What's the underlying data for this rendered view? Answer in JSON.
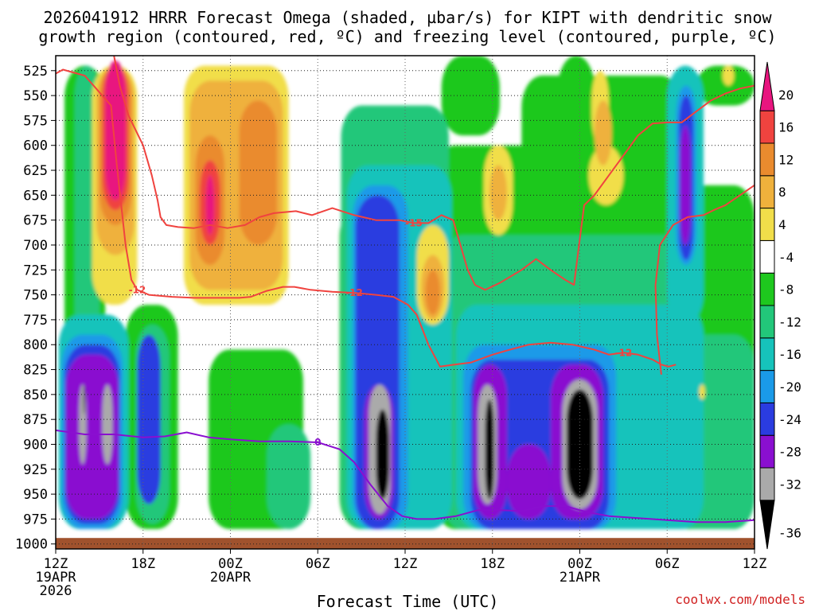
{
  "title": {
    "line1": "2026041912 HRRR Forecast Omega (shaded, µbar/s) for KIPT with dendritic snow",
    "line2": "growth region (contoured, red, ºC) and freezing level (contoured, purple, ºC)"
  },
  "credit": "coolwx.com/models",
  "colors": {
    "pink": "#e8157f",
    "red": "#f0433f",
    "orange": "#ea8b2e",
    "lightorange": "#efb13c",
    "yellow": "#f1de4a",
    "white": "#ffffff",
    "green": "#1ec81e",
    "seagreen": "#22c77a",
    "teal": "#16c3bb",
    "sky": "#1a9ae8",
    "blue": "#2a3ce0",
    "purple": "#8a0fd0",
    "gray": "#aaaaaa",
    "black": "#000000",
    "ground": "#a0522d",
    "dsg_contour": "#f0433f",
    "freezing_contour": "#8a0fd0"
  },
  "chart_data": {
    "type": "heatmap",
    "title": "2026041912 HRRR Forecast Omega (shaded, µbar/s) for KIPT with dendritic snow growth region (contoured, red, ºC) and freezing level (contoured, purple, ºC)",
    "xlabel": "Forecast Time (UTC)",
    "x_ticks": [
      {
        "hour": 0,
        "label": "12Z",
        "date": "19APR",
        "year": "2026"
      },
      {
        "hour": 6,
        "label": "18Z"
      },
      {
        "hour": 12,
        "label": "00Z",
        "date": "20APR"
      },
      {
        "hour": 18,
        "label": "06Z"
      },
      {
        "hour": 24,
        "label": "12Z"
      },
      {
        "hour": 30,
        "label": "18Z"
      },
      {
        "hour": 36,
        "label": "00Z",
        "date": "21APR"
      },
      {
        "hour": 42,
        "label": "06Z"
      },
      {
        "hour": 48,
        "label": "12Z"
      }
    ],
    "xlim": [
      0,
      48
    ],
    "ylabel": "",
    "y_ticks": [
      525,
      550,
      575,
      600,
      625,
      650,
      675,
      700,
      725,
      750,
      775,
      800,
      825,
      850,
      875,
      900,
      925,
      950,
      975,
      1000
    ],
    "ylim": [
      510,
      1005
    ],
    "colorbar": {
      "levels": [
        -36,
        -32,
        -28,
        -24,
        -20,
        -16,
        -12,
        -8,
        -4,
        4,
        8,
        12,
        16,
        20
      ],
      "labels": [
        "-36",
        "-32",
        "-28",
        "-24",
        "-20",
        "-16",
        "-12",
        "-8",
        "-4",
        "4",
        "8",
        "12",
        "16",
        "20"
      ],
      "colors": [
        "black",
        "gray",
        "purple",
        "blue",
        "sky",
        "teal",
        "seagreen",
        "green",
        "white",
        "yellow",
        "lightorange",
        "orange",
        "red",
        "pink"
      ],
      "units": "µbar/s"
    },
    "omega_features": [
      {
        "level": "green",
        "t": [
          0.6,
          3.4
        ],
        "p": [
          520,
          985
        ]
      },
      {
        "level": "green",
        "t": [
          4.8,
          8.4
        ],
        "p": [
          760,
          985
        ]
      },
      {
        "level": "green",
        "t": [
          10.5,
          17
        ],
        "p": [
          805,
          985
        ]
      },
      {
        "level": "green",
        "t": [
          19.5,
          27
        ],
        "p": [
          660,
          985
        ]
      },
      {
        "level": "green",
        "t": [
          26,
          34
        ],
        "p": [
          600,
          985
        ]
      },
      {
        "level": "green",
        "t": [
          32,
          43
        ],
        "p": [
          530,
          985
        ]
      },
      {
        "level": "green",
        "t": [
          42,
          48
        ],
        "p": [
          640,
          985
        ]
      },
      {
        "level": "green",
        "t": [
          44,
          48
        ],
        "p": [
          520,
          560
        ]
      },
      {
        "level": "green",
        "t": [
          26.5,
          30.5
        ],
        "p": [
          510,
          590
        ]
      },
      {
        "level": "green",
        "t": [
          34.5,
          37
        ],
        "p": [
          510,
          580
        ]
      },
      {
        "level": "seagreen",
        "t": [
          1.3,
          3
        ],
        "p": [
          520,
          960
        ]
      },
      {
        "level": "seagreen",
        "t": [
          5.5,
          7.8
        ],
        "p": [
          780,
          980
        ]
      },
      {
        "level": "seagreen",
        "t": [
          19.6,
          27
        ],
        "p": [
          560,
          985
        ]
      },
      {
        "level": "seagreen",
        "t": [
          26.5,
          44
        ],
        "p": [
          690,
          985
        ]
      },
      {
        "level": "seagreen",
        "t": [
          42.5,
          48
        ],
        "p": [
          790,
          985
        ]
      },
      {
        "level": "seagreen",
        "t": [
          14.5,
          17.5
        ],
        "p": [
          880,
          985
        ]
      },
      {
        "level": "teal",
        "t": [
          0.2,
          5
        ],
        "p": [
          770,
          985
        ]
      },
      {
        "level": "teal",
        "t": [
          20,
          27.2
        ],
        "p": [
          620,
          985
        ]
      },
      {
        "level": "teal",
        "t": [
          27.5,
          44.5
        ],
        "p": [
          760,
          985
        ]
      },
      {
        "level": "teal",
        "t": [
          42,
          44.5
        ],
        "p": [
          520,
          780
        ]
      },
      {
        "level": "sky",
        "t": [
          0.4,
          4.6
        ],
        "p": [
          790,
          985
        ]
      },
      {
        "level": "sky",
        "t": [
          20.4,
          24.2
        ],
        "p": [
          640,
          985
        ]
      },
      {
        "level": "sky",
        "t": [
          28,
          38.5
        ],
        "p": [
          800,
          985
        ]
      },
      {
        "level": "sky",
        "t": [
          42.6,
          44
        ],
        "p": [
          540,
          720
        ]
      },
      {
        "level": "blue",
        "t": [
          0.6,
          4.4
        ],
        "p": [
          800,
          980
        ]
      },
      {
        "level": "blue",
        "t": [
          20.6,
          23.6
        ],
        "p": [
          650,
          985
        ]
      },
      {
        "level": "blue",
        "t": [
          28.5,
          38
        ],
        "p": [
          815,
          985
        ]
      },
      {
        "level": "blue",
        "t": [
          5.6,
          7.2
        ],
        "p": [
          790,
          960
        ]
      },
      {
        "level": "blue",
        "t": [
          42.8,
          43.8
        ],
        "p": [
          550,
          715
        ]
      },
      {
        "level": "purple",
        "t": [
          0.7,
          4.3
        ],
        "p": [
          810,
          975
        ]
      },
      {
        "level": "purple",
        "t": [
          21.2,
          23.2
        ],
        "p": [
          840,
          975
        ]
      },
      {
        "level": "purple",
        "t": [
          28.7,
          31
        ],
        "p": [
          820,
          975
        ]
      },
      {
        "level": "purple",
        "t": [
          34,
          37.6
        ],
        "p": [
          820,
          975
        ]
      },
      {
        "level": "purple",
        "t": [
          31,
          34
        ],
        "p": [
          900,
          975
        ]
      },
      {
        "level": "purple",
        "t": [
          42.9,
          43.6
        ],
        "p": [
          580,
          700
        ]
      },
      {
        "level": "gray",
        "t": [
          1.6,
          2.1
        ],
        "p": [
          840,
          920
        ]
      },
      {
        "level": "gray",
        "t": [
          3.2,
          3.9
        ],
        "p": [
          840,
          920
        ]
      },
      {
        "level": "gray",
        "t": [
          21.5,
          23.0
        ],
        "p": [
          840,
          970
        ]
      },
      {
        "level": "gray",
        "t": [
          29.0,
          30.3
        ],
        "p": [
          840,
          960
        ]
      },
      {
        "level": "gray",
        "t": [
          34.8,
          37.2
        ],
        "p": [
          835,
          965
        ]
      },
      {
        "level": "black",
        "t": [
          22.0,
          22.9
        ],
        "p": [
          865,
          955
        ]
      },
      {
        "level": "black",
        "t": [
          29.5,
          30.1
        ],
        "p": [
          855,
          955
        ]
      },
      {
        "level": "black",
        "t": [
          35.1,
          36.9
        ],
        "p": [
          845,
          955
        ]
      },
      {
        "level": "black",
        "t": [
          1.9,
          2.0
        ],
        "p": [
          840,
          870
        ]
      },
      {
        "level": "yellow",
        "t": [
          2.5,
          5.6
        ],
        "p": [
          520,
          760
        ]
      },
      {
        "level": "yellow",
        "t": [
          8.8,
          16.0
        ],
        "p": [
          520,
          760
        ]
      },
      {
        "level": "yellow",
        "t": [
          24.8,
          27.0
        ],
        "p": [
          680,
          780
        ]
      },
      {
        "level": "yellow",
        "t": [
          29.4,
          31.4
        ],
        "p": [
          600,
          690
        ]
      },
      {
        "level": "yellow",
        "t": [
          36.6,
          39.0
        ],
        "p": [
          600,
          660
        ]
      },
      {
        "level": "yellow",
        "t": [
          36.8,
          38.0
        ],
        "p": [
          525,
          600
        ]
      },
      {
        "level": "yellow",
        "t": [
          44.2,
          44.6
        ],
        "p": [
          840,
          855
        ]
      },
      {
        "level": "yellow",
        "t": [
          45.8,
          46.6
        ],
        "p": [
          520,
          540
        ]
      },
      {
        "level": "lightorange",
        "t": [
          2.8,
          5.4
        ],
        "p": [
          520,
          710
        ]
      },
      {
        "level": "lightorange",
        "t": [
          9.2,
          15.6
        ],
        "p": [
          535,
          745
        ]
      },
      {
        "level": "lightorange",
        "t": [
          25.1,
          26.7
        ],
        "p": [
          710,
          775
        ]
      },
      {
        "level": "lightorange",
        "t": [
          29.8,
          31.0
        ],
        "p": [
          620,
          675
        ]
      },
      {
        "level": "lightorange",
        "t": [
          37.0,
          38.2
        ],
        "p": [
          555,
          620
        ]
      },
      {
        "level": "orange",
        "t": [
          3.0,
          5.2
        ],
        "p": [
          520,
          680
        ]
      },
      {
        "level": "orange",
        "t": [
          9.6,
          11.6
        ],
        "p": [
          590,
          720
        ]
      },
      {
        "level": "orange",
        "t": [
          12.6,
          15.2
        ],
        "p": [
          555,
          700
        ]
      },
      {
        "level": "orange",
        "t": [
          25.4,
          26.4
        ],
        "p": [
          725,
          770
        ]
      },
      {
        "level": "red",
        "t": [
          3.2,
          5.0
        ],
        "p": [
          520,
          665
        ]
      },
      {
        "level": "red",
        "t": [
          9.9,
          11.3
        ],
        "p": [
          615,
          700
        ]
      },
      {
        "level": "pink",
        "t": [
          3.4,
          4.8
        ],
        "p": [
          515,
          655
        ]
      },
      {
        "level": "pink",
        "t": [
          10.3,
          10.9
        ],
        "p": [
          630,
          690
        ]
      }
    ],
    "dsg_contours": [
      {
        "label": "-12",
        "t": [
          0,
          0.5,
          2,
          3.8,
          4.2,
          4.8,
          5.2,
          5.6,
          6.4,
          8.0,
          9.5,
          11.0,
          12.6,
          13.4,
          14.5,
          15.6,
          16.4,
          17.5,
          19.0,
          20.5,
          22.0,
          23.2,
          24.2,
          24.8,
          25.2,
          25.6,
          26.4,
          27.4,
          28.5,
          30.0,
          31.2,
          32.5,
          34.0,
          35.5,
          37.0,
          38.0,
          39.0,
          40.0,
          41.0,
          41.6,
          42.1,
          42.6
        ],
        "p": [
          528,
          524,
          530,
          560,
          620,
          700,
          735,
          745,
          750,
          752,
          753,
          753,
          753,
          752,
          746,
          742,
          742,
          745,
          747,
          748,
          750,
          752,
          760,
          770,
          785,
          800,
          822,
          820,
          818,
          810,
          805,
          800,
          798,
          800,
          805,
          810,
          808,
          810,
          815,
          820,
          822,
          820
        ]
      },
      {
        "label": "-15",
        "t": [
          4.0,
          4.4,
          5.0,
          6.0,
          6.6,
          7.0,
          7.2,
          7.6,
          8.4,
          9.5,
          10.6,
          11.8,
          13.0,
          14.0,
          15.0,
          16.5,
          17.6,
          19.0,
          20.5,
          22.0,
          23.6,
          24.6,
          25.6,
          26.5,
          27.3,
          27.8,
          28.3,
          28.8,
          29.5,
          30.5,
          32.0,
          33.0,
          34.0,
          35.0,
          35.6,
          35.9,
          36.3,
          37.0,
          38.0,
          39.0,
          40.0,
          41.0,
          42.0,
          43.0,
          44.0,
          45.0,
          46.0,
          47.0,
          48.0
        ],
        "p": [
          510,
          540,
          570,
          600,
          630,
          655,
          672,
          680,
          682,
          683,
          680,
          683,
          680,
          672,
          668,
          666,
          670,
          663,
          670,
          675,
          675,
          678,
          678,
          670,
          675,
          700,
          725,
          740,
          745,
          738,
          725,
          714,
          725,
          735,
          740,
          705,
          660,
          650,
          630,
          610,
          590,
          578,
          577,
          577,
          566,
          555,
          548,
          543,
          540
        ]
      },
      {
        "label": "",
        "t": [
          41.6,
          41.3,
          41.2,
          41.5,
          42.4,
          43.4,
          44.5,
          45.2,
          46.0,
          47.0,
          48.0
        ],
        "p": [
          830,
          790,
          740,
          700,
          680,
          672,
          670,
          665,
          660,
          650,
          640
        ]
      }
    ],
    "freezing_contour": {
      "label": "0",
      "t": [
        0,
        2,
        4,
        6,
        7.5,
        9,
        10.5,
        12,
        14,
        16,
        18,
        19.5,
        20.5,
        21.6,
        22.8,
        23.8,
        24.8,
        26,
        27.5,
        29,
        30.5,
        32,
        33.5,
        35,
        36.5,
        38,
        40,
        42,
        44,
        46,
        48
      ],
      "p": [
        886,
        890,
        890,
        893,
        892,
        888,
        893,
        895,
        897,
        897,
        898,
        905,
        918,
        940,
        962,
        972,
        975,
        975,
        972,
        966,
        966,
        967,
        962,
        962,
        968,
        972,
        974,
        976,
        978,
        978,
        976
      ]
    },
    "ground": {
      "p_top": 994
    }
  }
}
